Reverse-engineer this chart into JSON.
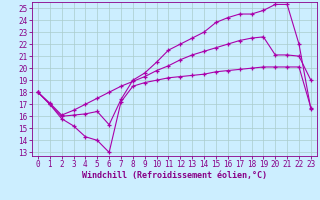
{
  "background_color": "#cceeff",
  "grid_color": "#aacccc",
  "line_color": "#aa00aa",
  "xlabel": "Windchill (Refroidissement éolien,°C)",
  "xlim_min": -0.5,
  "xlim_max": 23.5,
  "ylim_min": 12.7,
  "ylim_max": 25.5,
  "yticks": [
    13,
    14,
    15,
    16,
    17,
    18,
    19,
    20,
    21,
    22,
    23,
    24,
    25
  ],
  "xticks": [
    0,
    1,
    2,
    3,
    4,
    5,
    6,
    7,
    8,
    9,
    10,
    11,
    12,
    13,
    14,
    15,
    16,
    17,
    18,
    19,
    20,
    21,
    22,
    23
  ],
  "line1_x": [
    0,
    1,
    2,
    3,
    4,
    5,
    6,
    7,
    8,
    9,
    10,
    11,
    12,
    13,
    14,
    15,
    16,
    17,
    18,
    19,
    20,
    21,
    22,
    23
  ],
  "line1_y": [
    18.0,
    17.0,
    15.8,
    15.2,
    14.3,
    14.0,
    13.0,
    17.2,
    18.5,
    18.8,
    19.0,
    19.2,
    19.3,
    19.4,
    19.5,
    19.7,
    19.8,
    19.9,
    20.0,
    20.1,
    20.1,
    20.1,
    20.1,
    16.7
  ],
  "line2_x": [
    0,
    1,
    2,
    3,
    4,
    5,
    6,
    7,
    8,
    9,
    10,
    11,
    12,
    13,
    14,
    15,
    16,
    17,
    18,
    19,
    20,
    21,
    22,
    23
  ],
  "line2_y": [
    18.0,
    17.0,
    16.0,
    16.1,
    16.2,
    16.4,
    15.3,
    17.4,
    19.0,
    19.6,
    20.5,
    21.5,
    22.0,
    22.5,
    23.0,
    23.8,
    24.2,
    24.5,
    24.5,
    24.8,
    25.3,
    25.3,
    22.0,
    16.6
  ],
  "line3_x": [
    0,
    1,
    2,
    3,
    4,
    5,
    6,
    7,
    8,
    9,
    10,
    11,
    12,
    13,
    14,
    15,
    16,
    17,
    18,
    19,
    20,
    21,
    22,
    23
  ],
  "line3_y": [
    18.0,
    17.1,
    16.1,
    16.5,
    17.0,
    17.5,
    18.0,
    18.5,
    18.9,
    19.3,
    19.8,
    20.2,
    20.7,
    21.1,
    21.4,
    21.7,
    22.0,
    22.3,
    22.5,
    22.6,
    21.1,
    21.1,
    21.0,
    19.0
  ],
  "tick_color": "#880088",
  "tick_fontsize": 5.5,
  "xlabel_fontsize": 6.0
}
